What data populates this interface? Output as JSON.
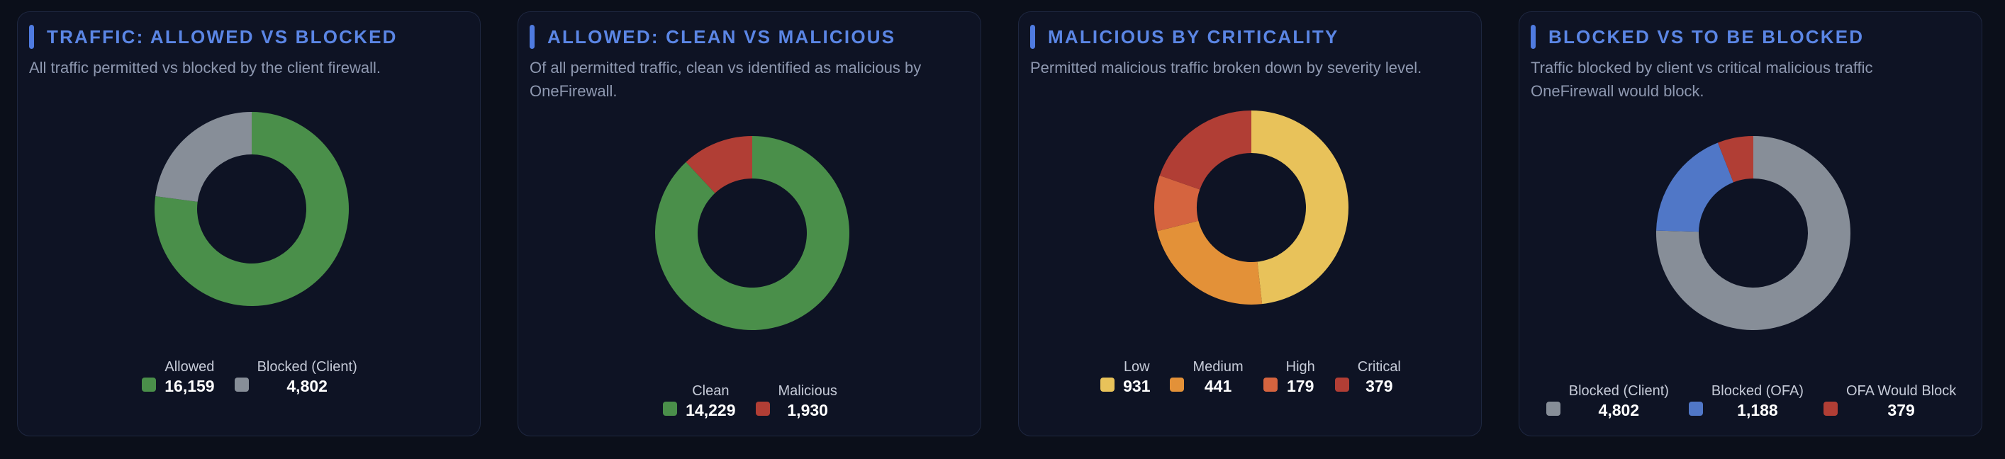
{
  "colors": {
    "background": "#0b0f1a",
    "card": "#0e1324",
    "accent": "#5b86e5",
    "allowed": "#4a8f4a",
    "blocked_client": "#878e98",
    "malicious": "#b13e35",
    "low": "#e8c25a",
    "medium": "#e39138",
    "high": "#d5643f",
    "critical": "#b13e35",
    "blocked_ofa": "#5077c7"
  },
  "cards": [
    {
      "title": "TRAFFIC: ALLOWED VS BLOCKED",
      "description": "All traffic permitted vs blocked by the client firewall."
    },
    {
      "title": "ALLOWED: CLEAN VS MALICIOUS",
      "description": "Of all permitted traffic, clean vs identified as malicious by OneFirewall."
    },
    {
      "title": "MALICIOUS BY CRITICALITY",
      "description": "Permitted malicious traffic broken down by severity level."
    },
    {
      "title": "BLOCKED VS TO BE BLOCKED",
      "description": "Traffic blocked by client vs critical malicious traffic OneFirewall would block."
    }
  ],
  "chart_data": [
    {
      "type": "pie",
      "title": "TRAFFIC: ALLOWED VS BLOCKED",
      "donut": true,
      "legend_position": "bottom",
      "series": [
        {
          "name": "Allowed",
          "value": 16159,
          "display": "16,159",
          "color": "#4a8f4a"
        },
        {
          "name": "Blocked (Client)",
          "value": 4802,
          "display": "4,802",
          "color": "#878e98"
        }
      ]
    },
    {
      "type": "pie",
      "title": "ALLOWED: CLEAN VS MALICIOUS",
      "donut": true,
      "legend_position": "bottom",
      "series": [
        {
          "name": "Clean",
          "value": 14229,
          "display": "14,229",
          "color": "#4a8f4a"
        },
        {
          "name": "Malicious",
          "value": 1930,
          "display": "1,930",
          "color": "#b13e35"
        }
      ]
    },
    {
      "type": "pie",
      "title": "MALICIOUS BY CRITICALITY",
      "donut": true,
      "legend_position": "bottom",
      "series": [
        {
          "name": "Low",
          "value": 931,
          "display": "931",
          "color": "#e8c25a"
        },
        {
          "name": "Medium",
          "value": 441,
          "display": "441",
          "color": "#e39138"
        },
        {
          "name": "High",
          "value": 179,
          "display": "179",
          "color": "#d5643f"
        },
        {
          "name": "Critical",
          "value": 379,
          "display": "379",
          "color": "#b13e35"
        }
      ]
    },
    {
      "type": "pie",
      "title": "BLOCKED VS TO BE BLOCKED",
      "donut": true,
      "legend_position": "bottom",
      "series": [
        {
          "name": "Blocked (Client)",
          "value": 4802,
          "display": "4,802",
          "color": "#878e98"
        },
        {
          "name": "Blocked (OFA)",
          "value": 1188,
          "display": "1,188",
          "color": "#5077c7"
        },
        {
          "name": "OFA Would Block",
          "value": 379,
          "display": "379",
          "color": "#b13e35"
        }
      ]
    }
  ]
}
